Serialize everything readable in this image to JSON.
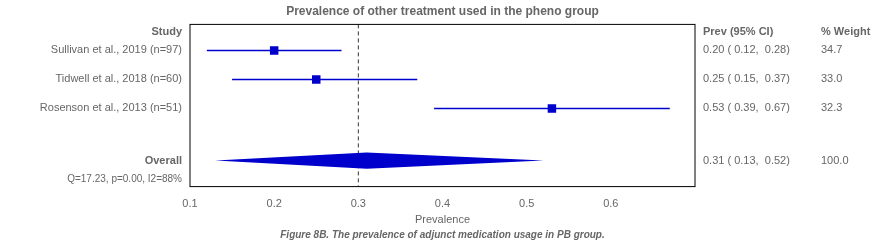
{
  "chart_data": {
    "type": "forest",
    "title": "Prevalence of other treatment used in the pheno group",
    "xlabel": "Prevalence",
    "category_label": "Study",
    "categories": [
      "Sullivan et al., 2019 (n=97)",
      "Tidwell et al., 2018 (n=60)",
      "Rosenson et al., 2013 (n=51)",
      "Overall"
    ],
    "values": [
      0.2,
      0.25,
      0.53,
      0.31
    ],
    "ci_low": [
      0.12,
      0.15,
      0.39,
      0.13
    ],
    "ci_high": [
      0.28,
      0.37,
      0.67,
      0.52
    ],
    "value_labels": [
      "0.20 ( 0.12,  0.28)",
      "0.25 ( 0.15,  0.37)",
      "0.53 ( 0.39,  0.67)",
      "0.31 ( 0.13,  0.52)"
    ],
    "weight_labels": [
      "34.7",
      "33.0",
      "32.3",
      "100.0"
    ],
    "column_labels": [
      "Prev (95% CI)",
      "% Weight"
    ],
    "annotation": "Q=17.23, p=0.00, I2=88%",
    "caption": "Figure 8B. The prevalence of adjunct medication usage in PB group.",
    "reference_line": 0.3,
    "xlim": [
      0.1,
      0.7
    ],
    "xticks": [
      0.1,
      0.2,
      0.3,
      0.4,
      0.5,
      0.6
    ],
    "color": "#0000CD",
    "grid": false
  }
}
